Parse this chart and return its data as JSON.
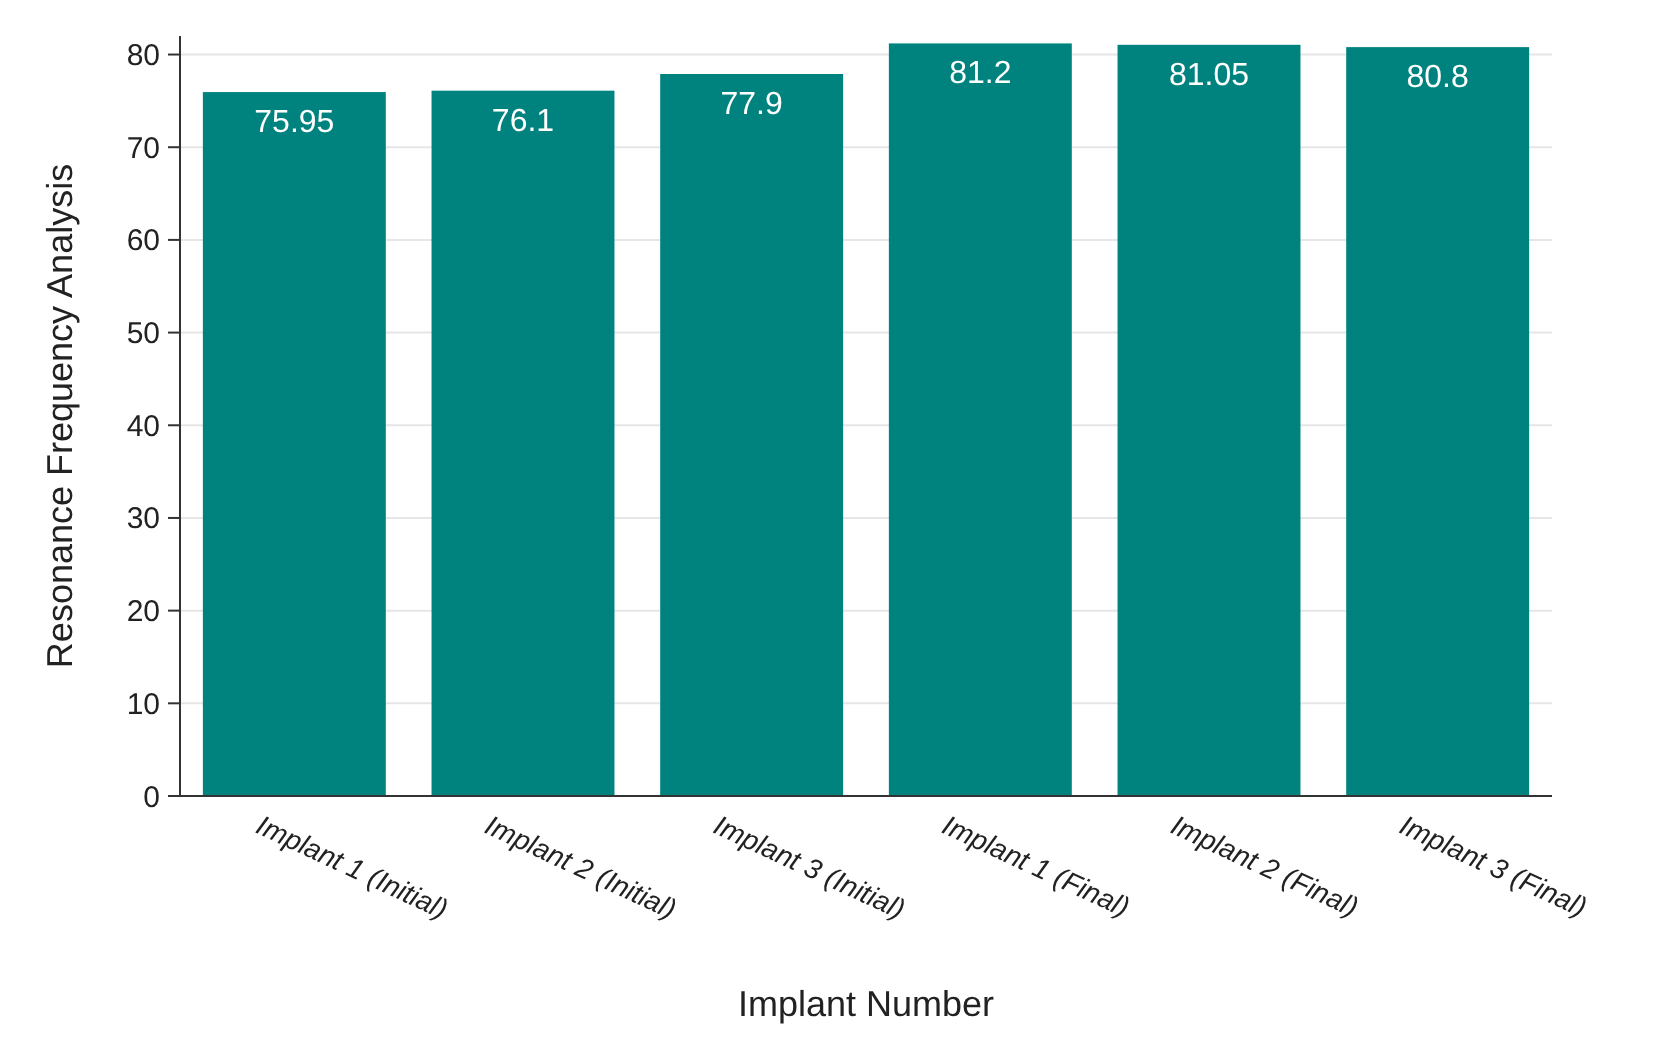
{
  "chart_data": {
    "type": "bar",
    "xlabel": "Implant Number",
    "ylabel": "Resonance Frequency Analysis",
    "categories": [
      "Implant 1 (Initial)",
      "Implant 2 (Initial)",
      "Implant 3 (Initial)",
      "Implant 1 (Final)",
      "Implant 2 (Final)",
      "Implant 3 (Final)"
    ],
    "values": [
      75.95,
      76.1,
      77.9,
      81.2,
      81.05,
      80.8
    ],
    "color": "#00837f",
    "ylim": [
      0,
      82
    ],
    "yticks": [
      0,
      10,
      20,
      30,
      40,
      50,
      60,
      70,
      80
    ],
    "grid": "y",
    "data_labels": true
  }
}
